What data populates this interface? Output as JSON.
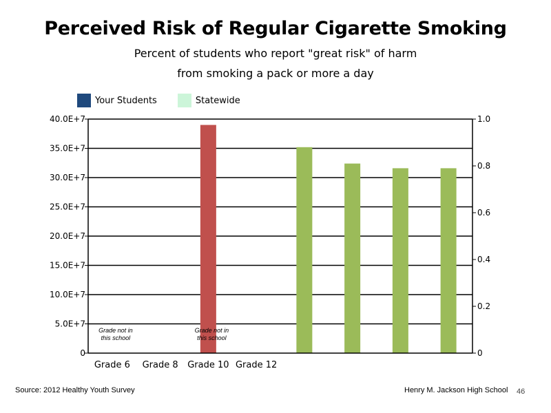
{
  "slide": {
    "title": "Perceived Risk of Regular Cigarette Smoking",
    "subtitle_line1": "Percent of students who report \"great risk\" of harm",
    "subtitle_line2": "from smoking a pack or more a day",
    "source": "Source: 2012 Healthy Youth Survey",
    "school": "Henry M. Jackson High School",
    "page_number": "46"
  },
  "chart_data": {
    "type": "bar",
    "title": "Perceived Risk of Regular Cigarette Smoking",
    "legend_position": "top-left",
    "legend": [
      {
        "name": "Your Students",
        "color": "#1f497d"
      },
      {
        "name": "Statewide",
        "color": "#ccf5d9"
      }
    ],
    "categories": [
      "Grade 6",
      "Grade 8",
      "Grade 10",
      "Grade 12",
      "",
      "",
      "",
      ""
    ],
    "left_axis": {
      "min": 0,
      "max": 400000000,
      "ticks": [
        {
          "value": 0,
          "label": "0"
        },
        {
          "value": 50000000,
          "label": "5.0E+7"
        },
        {
          "value": 100000000,
          "label": "10.0E+7"
        },
        {
          "value": 150000000,
          "label": "15.0E+7"
        },
        {
          "value": 200000000,
          "label": "20.0E+7"
        },
        {
          "value": 250000000,
          "label": "25.0E+7"
        },
        {
          "value": 300000000,
          "label": "30.0E+7"
        },
        {
          "value": 350000000,
          "label": "35.0E+7"
        },
        {
          "value": 400000000,
          "label": "40.0E+7"
        }
      ]
    },
    "right_axis": {
      "min": 0,
      "max": 1.0,
      "ticks": [
        {
          "value": 0,
          "label": "0"
        },
        {
          "value": 0.2,
          "label": "0.2"
        },
        {
          "value": 0.4,
          "label": "0.4"
        },
        {
          "value": 0.6,
          "label": "0.6"
        },
        {
          "value": 0.8,
          "label": "0.8"
        },
        {
          "value": 1.0,
          "label": "1.0"
        }
      ]
    },
    "grid": true,
    "series": [
      {
        "color": "#c0504d",
        "axis": "left",
        "values": [
          null,
          null,
          390000000,
          null,
          null,
          null,
          null,
          null
        ]
      },
      {
        "color": "#9bbb59",
        "axis": "right",
        "values": [
          null,
          null,
          null,
          null,
          0.88,
          0.81,
          0.79,
          0.79
        ]
      }
    ],
    "annotations": [
      {
        "category_index": 0,
        "line1": "Grade not in",
        "line2": "this school"
      },
      {
        "category_index": 2,
        "line1": "Grade not in",
        "line2": "this school"
      }
    ]
  }
}
